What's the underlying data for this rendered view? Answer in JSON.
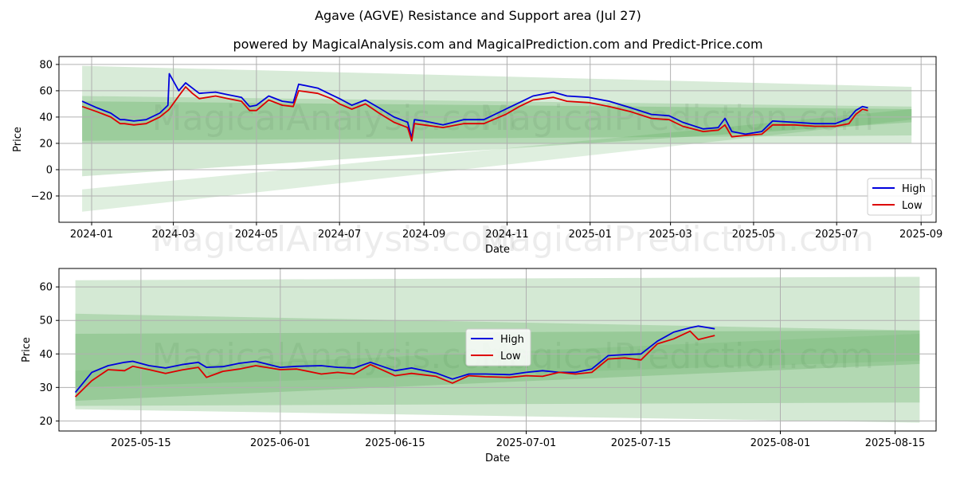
{
  "title": "Agave (AGVE) Resistance and Support area (Jul 27)",
  "subtitle": "powered by MagicalAnalysis.com and MagicalPrediction.com and Predict-Price.com",
  "watermark_left": "MagicalAnalysis.com",
  "watermark_right": "MagicalPrediction.com",
  "colors": {
    "high": "#0000dd",
    "low": "#dd0000",
    "band": "#3a9a3a"
  },
  "chart_data": [
    {
      "type": "line",
      "xlabel": "Date",
      "ylabel": "Price",
      "x_range": [
        "2023-12-08",
        "2025-09-12"
      ],
      "ylim": [
        -40,
        86
      ],
      "grid": true,
      "legend_position": "right",
      "y_ticks": [
        -20,
        0,
        20,
        40,
        60,
        80
      ],
      "x_ticks": [
        "2024-01",
        "2024-03",
        "2024-05",
        "2024-07",
        "2024-09",
        "2024-11",
        "2025-01",
        "2025-03",
        "2025-05",
        "2025-07",
        "2025-09"
      ],
      "bands": [
        {
          "x": [
            "2023-12-25",
            "2025-08-25"
          ],
          "upper": [
            79,
            63
          ],
          "lower": [
            20,
            20
          ],
          "opacity": 0.2
        },
        {
          "x": [
            "2023-12-25",
            "2025-08-25"
          ],
          "upper": [
            56,
            48
          ],
          "lower": [
            22,
            26
          ],
          "opacity": 0.2
        },
        {
          "x": [
            "2023-12-25",
            "2025-08-25"
          ],
          "upper": [
            52,
            46
          ],
          "lower": [
            -5,
            36
          ],
          "opacity": 0.22
        },
        {
          "x": [
            "2023-12-25",
            "2025-08-25"
          ],
          "upper": [
            -15,
            46
          ],
          "lower": [
            -32,
            38
          ],
          "opacity": 0.16
        }
      ],
      "series": [
        {
          "name": "High",
          "x": [
            "2023-12-25",
            "2024-01-05",
            "2024-01-15",
            "2024-01-22",
            "2024-01-25",
            "2024-02-01",
            "2024-02-10",
            "2024-02-20",
            "2024-02-26",
            "2024-02-27",
            "2024-03-05",
            "2024-03-10",
            "2024-03-15",
            "2024-03-20",
            "2024-04-01",
            "2024-04-10",
            "2024-04-20",
            "2024-04-26",
            "2024-05-01",
            "2024-05-10",
            "2024-05-20",
            "2024-05-28",
            "2024-06-01",
            "2024-06-15",
            "2024-06-25",
            "2024-07-01",
            "2024-07-10",
            "2024-07-20",
            "2024-07-30",
            "2024-08-10",
            "2024-08-20",
            "2024-08-23",
            "2024-08-25",
            "2024-09-01",
            "2024-09-15",
            "2024-09-30",
            "2024-10-15",
            "2024-10-31",
            "2024-11-10",
            "2024-11-20",
            "2024-12-05",
            "2024-12-15",
            "2024-12-31",
            "2025-01-15",
            "2025-01-31",
            "2025-02-15",
            "2025-02-28",
            "2025-03-10",
            "2025-03-25",
            "2025-04-05",
            "2025-04-10",
            "2025-04-15",
            "2025-04-25",
            "2025-05-07",
            "2025-05-15",
            "2025-05-31",
            "2025-06-15",
            "2025-06-30",
            "2025-07-10",
            "2025-07-15",
            "2025-07-20",
            "2025-07-24"
          ],
          "values": [
            52,
            47,
            43,
            38,
            38,
            37,
            38,
            43,
            49,
            73,
            60,
            66,
            62,
            58,
            59,
            57,
            55,
            48,
            49,
            56,
            52,
            51,
            65,
            62,
            57,
            54,
            49,
            53,
            47,
            40,
            36,
            24,
            38,
            37,
            34,
            38,
            38,
            46,
            51,
            56,
            59,
            56,
            55,
            52,
            47,
            42,
            41,
            36,
            31,
            32,
            39,
            29,
            27,
            29,
            37,
            36,
            35,
            35,
            39,
            45,
            48,
            47
          ]
        },
        {
          "name": "Low",
          "x": [
            "2023-12-25",
            "2024-01-05",
            "2024-01-15",
            "2024-01-22",
            "2024-01-25",
            "2024-02-01",
            "2024-02-10",
            "2024-02-20",
            "2024-02-26",
            "2024-02-27",
            "2024-03-05",
            "2024-03-10",
            "2024-03-15",
            "2024-03-20",
            "2024-04-01",
            "2024-04-10",
            "2024-04-20",
            "2024-04-26",
            "2024-05-01",
            "2024-05-10",
            "2024-05-20",
            "2024-05-28",
            "2024-06-01",
            "2024-06-15",
            "2024-06-25",
            "2024-07-01",
            "2024-07-10",
            "2024-07-20",
            "2024-07-30",
            "2024-08-10",
            "2024-08-20",
            "2024-08-23",
            "2024-08-25",
            "2024-09-01",
            "2024-09-15",
            "2024-09-30",
            "2024-10-15",
            "2024-10-31",
            "2024-11-10",
            "2024-11-20",
            "2024-12-05",
            "2024-12-15",
            "2024-12-31",
            "2025-01-15",
            "2025-01-31",
            "2025-02-15",
            "2025-02-28",
            "2025-03-10",
            "2025-03-25",
            "2025-04-05",
            "2025-04-10",
            "2025-04-15",
            "2025-04-25",
            "2025-05-07",
            "2025-05-15",
            "2025-05-31",
            "2025-06-15",
            "2025-06-30",
            "2025-07-10",
            "2025-07-15",
            "2025-07-20",
            "2025-07-24"
          ],
          "values": [
            48,
            44,
            40,
            35,
            35,
            34,
            35,
            40,
            45,
            46,
            56,
            63,
            58,
            54,
            56,
            54,
            52,
            45,
            45,
            53,
            49,
            48,
            60,
            58,
            54,
            50,
            46,
            50,
            43,
            36,
            32,
            22,
            35,
            34,
            32,
            35,
            35,
            42,
            48,
            53,
            55,
            52,
            51,
            48,
            44,
            39,
            38,
            33,
            29,
            30,
            34,
            25,
            26,
            27,
            34,
            34,
            33,
            33,
            35,
            42,
            46,
            45
          ]
        }
      ]
    },
    {
      "type": "line",
      "xlabel": "Date",
      "ylabel": "Price",
      "x_range": [
        "2025-05-05",
        "2025-08-20"
      ],
      "ylim": [
        17,
        65.5
      ],
      "grid": true,
      "legend_position": "center",
      "y_ticks": [
        20,
        30,
        40,
        50,
        60
      ],
      "x_ticks": [
        "2025-05-15",
        "2025-06-01",
        "2025-06-15",
        "2025-07-01",
        "2025-07-15",
        "2025-08-01",
        "2025-08-15"
      ],
      "bands": [
        {
          "x": [
            "2025-05-07",
            "2025-08-18"
          ],
          "upper": [
            62,
            63
          ],
          "lower": [
            23.5,
            19.5
          ],
          "opacity": 0.22
        },
        {
          "x": [
            "2025-05-07",
            "2025-08-18"
          ],
          "upper": [
            52,
            47
          ],
          "lower": [
            24.5,
            25.5
          ],
          "opacity": 0.22
        },
        {
          "x": [
            "2025-05-07",
            "2025-08-18"
          ],
          "upper": [
            46,
            47
          ],
          "lower": [
            26,
            37
          ],
          "opacity": 0.22
        },
        {
          "x": [
            "2025-05-07",
            "2025-08-18"
          ],
          "upper": [
            35,
            46
          ],
          "lower": [
            30,
            38
          ],
          "opacity": 0.1
        }
      ],
      "series": [
        {
          "name": "High",
          "x": [
            "2025-05-07",
            "2025-05-09",
            "2025-05-11",
            "2025-05-13",
            "2025-05-14",
            "2025-05-16",
            "2025-05-18",
            "2025-05-20",
            "2025-05-22",
            "2025-05-23",
            "2025-05-25",
            "2025-05-27",
            "2025-05-29",
            "2025-06-01",
            "2025-06-03",
            "2025-06-06",
            "2025-06-08",
            "2025-06-10",
            "2025-06-12",
            "2025-06-15",
            "2025-06-17",
            "2025-06-20",
            "2025-06-22",
            "2025-06-24",
            "2025-06-26",
            "2025-06-29",
            "2025-07-01",
            "2025-07-03",
            "2025-07-05",
            "2025-07-07",
            "2025-07-09",
            "2025-07-11",
            "2025-07-13",
            "2025-07-15",
            "2025-07-17",
            "2025-07-19",
            "2025-07-21",
            "2025-07-22",
            "2025-07-24"
          ],
          "values": [
            28.5,
            34.5,
            36.5,
            37.5,
            37.8,
            36.5,
            35.8,
            36.8,
            37.5,
            36,
            36.2,
            37.2,
            37.8,
            36,
            36.3,
            36.5,
            36,
            35.8,
            37.5,
            35,
            35.8,
            34.3,
            32.5,
            34,
            34,
            33.8,
            34.5,
            35,
            34.5,
            34.5,
            35.5,
            39.5,
            39.8,
            40,
            43.8,
            46.5,
            47.8,
            48.3,
            47.5
          ]
        },
        {
          "name": "Low",
          "x": [
            "2025-05-07",
            "2025-05-09",
            "2025-05-11",
            "2025-05-13",
            "2025-05-14",
            "2025-05-16",
            "2025-05-18",
            "2025-05-20",
            "2025-05-22",
            "2025-05-23",
            "2025-05-25",
            "2025-05-27",
            "2025-05-29",
            "2025-06-01",
            "2025-06-03",
            "2025-06-06",
            "2025-06-08",
            "2025-06-10",
            "2025-06-12",
            "2025-06-15",
            "2025-06-17",
            "2025-06-20",
            "2025-06-22",
            "2025-06-24",
            "2025-06-26",
            "2025-06-29",
            "2025-07-01",
            "2025-07-03",
            "2025-07-05",
            "2025-07-07",
            "2025-07-09",
            "2025-07-11",
            "2025-07-13",
            "2025-07-15",
            "2025-07-17",
            "2025-07-19",
            "2025-07-21",
            "2025-07-22",
            "2025-07-24"
          ],
          "values": [
            27.2,
            32,
            35.3,
            35,
            36.3,
            35.3,
            34.2,
            35.2,
            36,
            33,
            34.8,
            35.5,
            36.5,
            35.3,
            35.5,
            34,
            34.5,
            34,
            36.8,
            33.5,
            34.2,
            33.3,
            31.3,
            33.5,
            33.2,
            33,
            33.5,
            33.3,
            34.5,
            34,
            34.5,
            38.5,
            38.8,
            38.2,
            43,
            44.5,
            46.8,
            44.3,
            45.5
          ]
        }
      ]
    }
  ]
}
